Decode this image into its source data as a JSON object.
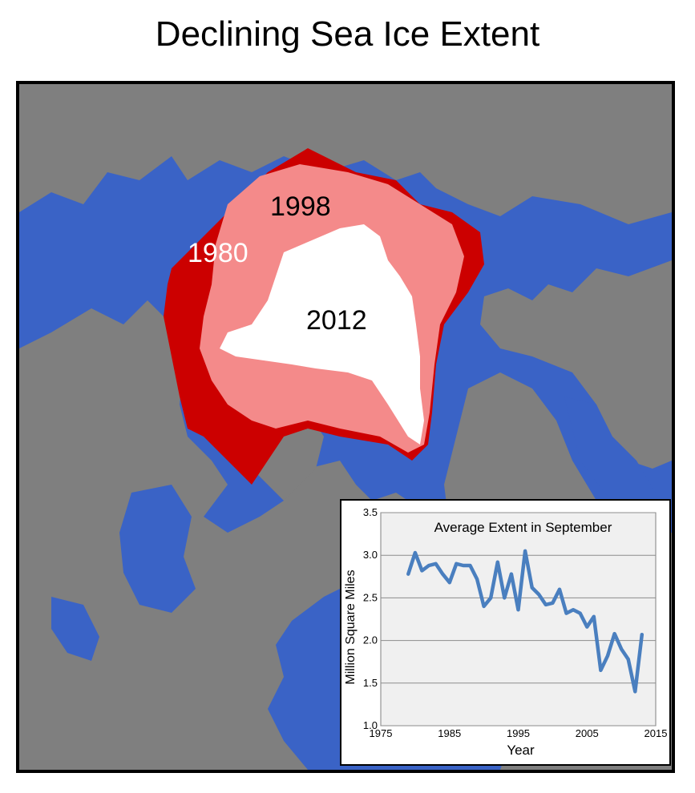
{
  "title": "Declining Sea Ice Extent",
  "map": {
    "labels": {
      "y1980": "1980",
      "y1998": "1998",
      "y2012": "2012"
    },
    "colors": {
      "ocean": "#3a63c6",
      "land": "#7f7f7f",
      "ice1980": "#cc0000",
      "ice1998": "#f48a8a",
      "ice2012": "#ffffff"
    }
  },
  "chart_data": {
    "type": "line",
    "title": "Average Extent in September",
    "xlabel": "Year",
    "ylabel": "Million Square Miles",
    "xlim": [
      1975,
      2015
    ],
    "ylim": [
      1.0,
      3.5
    ],
    "xticks": [
      "1975",
      "1985",
      "1995",
      "2005",
      "2015"
    ],
    "yticks": [
      "1.0",
      "1.5",
      "2.0",
      "2.5",
      "3.0",
      "3.5"
    ],
    "grid": true,
    "line_color": "#4a7fbf",
    "background": "#f0f0f0",
    "x": [
      1979,
      1980,
      1981,
      1982,
      1983,
      1984,
      1985,
      1986,
      1987,
      1988,
      1989,
      1990,
      1991,
      1992,
      1993,
      1994,
      1995,
      1996,
      1997,
      1998,
      1999,
      2000,
      2001,
      2002,
      2003,
      2004,
      2005,
      2006,
      2007,
      2008,
      2009,
      2010,
      2011,
      2012,
      2013
    ],
    "values": [
      2.78,
      3.03,
      2.82,
      2.88,
      2.9,
      2.78,
      2.68,
      2.9,
      2.88,
      2.88,
      2.72,
      2.4,
      2.5,
      2.92,
      2.5,
      2.78,
      2.36,
      3.05,
      2.62,
      2.54,
      2.42,
      2.44,
      2.6,
      2.32,
      2.36,
      2.32,
      2.16,
      2.28,
      1.65,
      1.82,
      2.08,
      1.9,
      1.78,
      1.4,
      2.07
    ]
  }
}
